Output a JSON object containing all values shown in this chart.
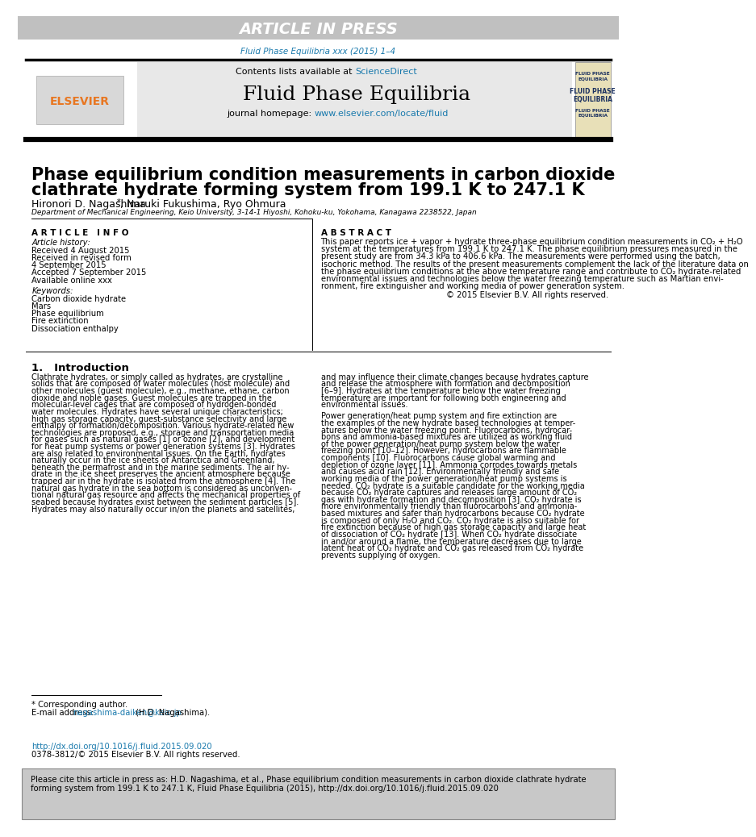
{
  "article_in_press_text": "ARTICLE IN PRESS",
  "header_bg": "#c0c0c0",
  "journal_ref": "Fluid Phase Equilibria xxx (2015) 1–4",
  "journal_ref_color": "#1a7aad",
  "contents_text": "Contents lists available at ",
  "sciencedirect_text": "ScienceDirect",
  "sciencedirect_color": "#1a7aad",
  "journal_title": "Fluid Phase Equilibria",
  "journal_homepage_prefix": "journal homepage: ",
  "journal_homepage_url": "www.elsevier.com/locate/fluid",
  "journal_homepage_color": "#1a7aad",
  "paper_title_line1": "Phase equilibrium condition measurements in carbon dioxide",
  "paper_title_line2": "clathrate hydrate forming system from 199.1 K to 247.1 K",
  "authors_main": "Hironori D. Nagashima",
  "authors_rest": ", Naruki Fukushima, Ryo Ohmura",
  "affiliation": "Department of Mechanical Engineering, Keio University, 3-14-1 Hiyoshi, Kohoku-ku, Yokohama, Kanagawa 2238522, Japan",
  "article_info_title": "A R T I C L E   I N F O",
  "article_history_label": "Article history:",
  "article_history_lines": [
    "Received 4 August 2015",
    "Received in revised form",
    "4 September 2015",
    "Accepted 7 September 2015",
    "Available online xxx"
  ],
  "keywords_label": "Keywords:",
  "keywords_lines": [
    "Carbon dioxide hydrate",
    "Mars",
    "Phase equilibrium",
    "Fire extinction",
    "Dissociation enthalpy"
  ],
  "abstract_title": "A B S T R A C T",
  "abstract_lines": [
    "This paper reports ice + vapor + hydrate three-phase equilibrium condition measurements in CO₂ + H₂O",
    "system at the temperatures from 199.1 K to 247.1 K. The phase equilibrium pressures measured in the",
    "present study are from 34.3 kPa to 406.6 kPa. The measurements were performed using the batch,",
    "isochoric method. The results of the present measurements complement the lack of the literature data on",
    "the phase equilibrium conditions at the above temperature range and contribute to CO₂ hydrate-related",
    "environmental issues and technologies below the water freezing temperature such as Martian envi-",
    "ronment, fire extinguisher and working media of power generation system."
  ],
  "abstract_copyright": "© 2015 Elsevier B.V. All rights reserved.",
  "section1_title": "1.   Introduction",
  "col1_lines": [
    "Clathrate hydrates, or simply called as hydrates, are crystalline",
    "solids that are composed of water molecules (host molecule) and",
    "other molecules (guest molecule), e.g., methane, ethane, carbon",
    "dioxide and noble gases. Guest molecules are trapped in the",
    "molecular-level cages that are composed of hydrogen-bonded",
    "water molecules. Hydrates have several unique characteristics;",
    "high gas storage capacity, guest-substance selectivity and large",
    "enthalpy of formation/decomposition. Various hydrate-related new",
    "technologies are proposed, e.g., storage and transportation media",
    "for gases such as natural gases [1] or ozone [2], and development",
    "for heat pump systems or power generation systems [3]. Hydrates",
    "are also related to environmental issues. On the Earth, hydrates",
    "naturally occur in the ice sheets of Antarctica and Greenland,",
    "beneath the permafrost and in the marine sediments. The air hy-",
    "drate in the ice sheet preserves the ancient atmosphere because",
    "trapped air in the hydrate is isolated from the atmosphere [4]. The",
    "natural gas hydrate in the sea bottom is considered as unconven-",
    "tional natural gas resource and affects the mechanical properties of",
    "seabed because hydrates exist between the sediment particles [5].",
    "Hydrates may also naturally occur in/on the planets and satellites,"
  ],
  "col2_lines": [
    "and may influence their climate changes because hydrates capture",
    "and release the atmosphere with formation and decomposition",
    "[6–9]. Hydrates at the temperature below the water freezing",
    "temperature are important for following both engineering and",
    "environmental issues.",
    "",
    "Power generation/heat pump system and fire extinction are",
    "the examples of the new hydrate based technologies at temper-",
    "atures below the water freezing point. Fluorocarbons, hydrocar-",
    "bons and ammonia-based mixtures are utilized as working fluid",
    "of the power generation/heat pump system below the water",
    "freezing point [10–12]. However, hydrocarbons are flammable",
    "components [10]. Fluorocarbons cause global warming and",
    "depletion of ozone layer [11]. Ammonia corrodes towards metals",
    "and causes acid rain [12]. Environmentally friendly and safe",
    "working media of the power generation/heat pump systems is",
    "needed. CO₂ hydrate is a suitable candidate for the working media",
    "because CO₂ hydrate captures and releases large amount of CO₂",
    "gas with hydrate formation and decomposition [3]. CO₂ hydrate is",
    "more environmentally friendly than fluorocarbons and ammonia-",
    "based mixtures and safer than hydrocarbons because CO₂ hydrate",
    "is composed of only H₂O and CO₂. CO₂ hydrate is also suitable for",
    "fire extinction because of high gas storage capacity and large heat",
    "of dissociation of CO₂ hydrate [13]. When CO₂ hydrate dissociate",
    "in and/or around a flame, the temperature decreases due to large",
    "latent heat of CO₂ hydrate and CO₂ gas released from CO₂ hydrate",
    "prevents supplying of oxygen."
  ],
  "footnote_corresponding": "* Corresponding author.",
  "footnote_email_label": "E-mail address: ",
  "footnote_email": "nagashima-daiken@keio.jp",
  "footnote_email_color": "#1a7aad",
  "footnote_email_suffix": " (H.D. Nagashima).",
  "doi_url": "http://dx.doi.org/10.1016/j.fluid.2015.09.020",
  "doi_url_color": "#1a7aad",
  "copyright_line": "0378-3812/© 2015 Elsevier B.V. All rights reserved.",
  "citation_line1": "Please cite this article in press as: H.D. Nagashima, et al., Phase equilibrium condition measurements in carbon dioxide clathrate hydrate",
  "citation_line2": "forming system from 199.1 K to 247.1 K, Fluid Phase Equilibria (2015), http://dx.doi.org/10.1016/j.fluid.2015.09.020",
  "citation_box_bg": "#c8c8c8",
  "elsevier_color": "#e87722",
  "cover_bg": "#e8e0b8",
  "cover_text_color": "#1a3060"
}
